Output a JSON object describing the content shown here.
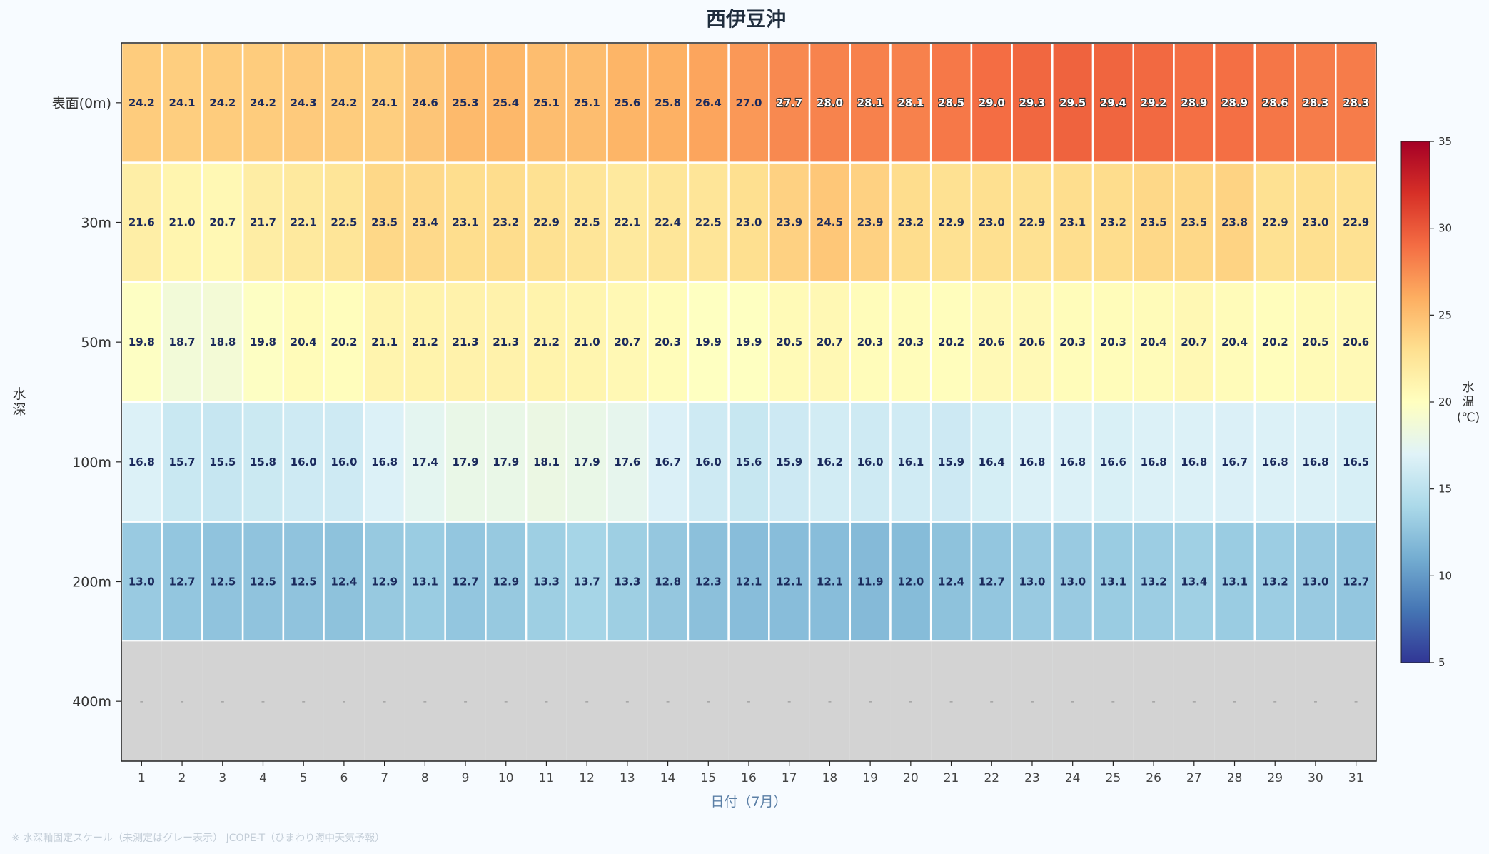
{
  "chart_data": {
    "type": "heatmap",
    "title": "西伊豆沖",
    "xlabel": "日付（7月）",
    "ylabel": "水深",
    "x": [
      "1",
      "2",
      "3",
      "4",
      "5",
      "6",
      "7",
      "8",
      "9",
      "10",
      "11",
      "12",
      "13",
      "14",
      "15",
      "16",
      "17",
      "18",
      "19",
      "20",
      "21",
      "22",
      "23",
      "24",
      "25",
      "26",
      "27",
      "28",
      "29",
      "30",
      "31"
    ],
    "y": [
      "表面(0m)",
      "30m",
      "50m",
      "100m",
      "200m",
      "400m"
    ],
    "values": [
      [
        24.2,
        24.1,
        24.2,
        24.2,
        24.3,
        24.2,
        24.1,
        24.6,
        25.3,
        25.4,
        25.1,
        25.1,
        25.6,
        25.8,
        26.4,
        27.0,
        27.7,
        28.0,
        28.1,
        28.1,
        28.5,
        29.0,
        29.3,
        29.5,
        29.4,
        29.2,
        28.9,
        28.9,
        28.6,
        28.3,
        28.3
      ],
      [
        21.6,
        21.0,
        20.7,
        21.7,
        22.1,
        22.5,
        23.5,
        23.4,
        23.1,
        23.2,
        22.9,
        22.5,
        22.1,
        22.4,
        22.5,
        23.0,
        23.9,
        24.5,
        23.9,
        23.2,
        22.9,
        23.0,
        22.9,
        23.1,
        23.2,
        23.5,
        23.5,
        23.8,
        22.9,
        23.0,
        22.9
      ],
      [
        19.8,
        18.7,
        18.8,
        19.8,
        20.4,
        20.2,
        21.1,
        21.2,
        21.3,
        21.3,
        21.2,
        21.0,
        20.7,
        20.3,
        19.9,
        19.9,
        20.5,
        20.7,
        20.3,
        20.3,
        20.2,
        20.6,
        20.6,
        20.3,
        20.3,
        20.4,
        20.7,
        20.4,
        20.2,
        20.5,
        20.6
      ],
      [
        16.8,
        15.7,
        15.5,
        15.8,
        16.0,
        16.0,
        16.8,
        17.4,
        17.9,
        17.9,
        18.1,
        17.9,
        17.6,
        16.7,
        16.0,
        15.6,
        15.9,
        16.2,
        16.0,
        16.1,
        15.9,
        16.4,
        16.8,
        16.8,
        16.6,
        16.8,
        16.8,
        16.7,
        16.8,
        16.8,
        16.5
      ],
      [
        13.0,
        12.7,
        12.5,
        12.5,
        12.5,
        12.4,
        12.9,
        13.1,
        12.7,
        12.9,
        13.3,
        13.7,
        13.3,
        12.8,
        12.3,
        12.1,
        12.1,
        12.1,
        11.9,
        12.0,
        12.4,
        12.7,
        13.0,
        13.0,
        13.1,
        13.2,
        13.4,
        13.1,
        13.2,
        13.0,
        12.7
      ],
      [
        null,
        null,
        null,
        null,
        null,
        null,
        null,
        null,
        null,
        null,
        null,
        null,
        null,
        null,
        null,
        null,
        null,
        null,
        null,
        null,
        null,
        null,
        null,
        null,
        null,
        null,
        null,
        null,
        null,
        null,
        null
      ]
    ],
    "missing_label": "-",
    "missing_color": "#d3d3d3",
    "colormap": "RdYlBu_r",
    "vmin": 5,
    "vmax": 35,
    "colorbar": {
      "label": "水温(℃)",
      "ticks": [
        5,
        10,
        15,
        20,
        25,
        30,
        35
      ]
    }
  },
  "footnote": "※ 水深軸固定スケール（未測定はグレー表示） JCOPE-T（ひまわり海中天気予報）"
}
